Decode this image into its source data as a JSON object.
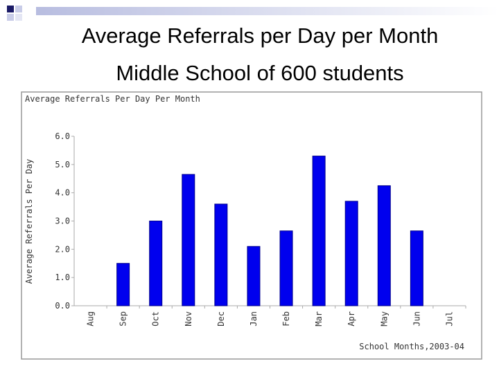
{
  "slide": {
    "title": "Average Referrals per Day per Month",
    "subtitle": "Middle School of 600 students"
  },
  "chart_data": {
    "type": "bar",
    "title": "Average Referrals Per Day Per Month",
    "y_label": "Average Referrals Per Day",
    "x_label": "School Months,2003-04",
    "categories": [
      "Aug",
      "Sep",
      "Oct",
      "Nov",
      "Dec",
      "Jan",
      "Feb",
      "Mar",
      "Apr",
      "May",
      "Jun",
      "Jul"
    ],
    "values": [
      null,
      1.5,
      3.0,
      4.65,
      3.6,
      2.1,
      2.65,
      5.3,
      3.7,
      4.25,
      2.65,
      null
    ],
    "color": "#0000ee",
    "ylim": [
      0,
      6
    ],
    "yticks": [
      {
        "value": 0,
        "label": "0.0"
      },
      {
        "value": 1,
        "label": "1.0"
      },
      {
        "value": 2,
        "label": "2.0"
      },
      {
        "value": 3,
        "label": "3.0"
      },
      {
        "value": 4,
        "label": "4.0"
      },
      {
        "value": 5,
        "label": "5.0"
      },
      {
        "value": 6,
        "label": "6.0"
      }
    ],
    "grid": false
  }
}
